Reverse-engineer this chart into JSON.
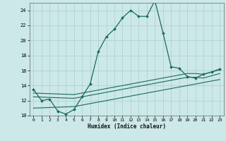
{
  "xlabel": "Humidex (Indice chaleur)",
  "bg_color": "#cce8e8",
  "grid_color": "#aacfcf",
  "line_color": "#1a6b5a",
  "xlim": [
    -0.5,
    23.5
  ],
  "ylim": [
    10,
    25
  ],
  "yticks": [
    10,
    12,
    14,
    16,
    18,
    20,
    22,
    24
  ],
  "xticks": [
    0,
    1,
    2,
    3,
    4,
    5,
    6,
    7,
    8,
    9,
    10,
    11,
    12,
    13,
    14,
    15,
    16,
    17,
    18,
    19,
    20,
    21,
    22,
    23
  ],
  "main_line": {
    "x": [
      0,
      1,
      2,
      3,
      4,
      5,
      6,
      7,
      8,
      9,
      10,
      11,
      12,
      13,
      14,
      15,
      16,
      17,
      18,
      19,
      20,
      21,
      22,
      23
    ],
    "y": [
      13.5,
      12.0,
      12.2,
      10.6,
      10.2,
      10.8,
      12.5,
      14.2,
      18.5,
      20.5,
      21.5,
      23.0,
      24.0,
      23.2,
      23.2,
      25.3,
      21.0,
      16.5,
      16.3,
      15.2,
      15.0,
      15.5,
      15.8,
      16.2
    ]
  },
  "flat_lines": [
    {
      "x": [
        0,
        5,
        6,
        7,
        8,
        9,
        10,
        11,
        12,
        13,
        14,
        15,
        16,
        17,
        18,
        19,
        20,
        21,
        22,
        23
      ],
      "y": [
        13.0,
        12.8,
        13.0,
        13.2,
        13.4,
        13.6,
        13.8,
        14.0,
        14.2,
        14.4,
        14.6,
        14.8,
        15.0,
        15.2,
        15.4,
        15.6,
        15.6,
        15.5,
        15.8,
        16.1
      ]
    },
    {
      "x": [
        0,
        5,
        6,
        7,
        8,
        9,
        10,
        11,
        12,
        13,
        14,
        15,
        16,
        17,
        18,
        19,
        20,
        21,
        22,
        23
      ],
      "y": [
        12.5,
        12.3,
        12.5,
        12.7,
        12.9,
        13.1,
        13.3,
        13.5,
        13.7,
        13.9,
        14.1,
        14.3,
        14.5,
        14.7,
        14.9,
        15.1,
        15.1,
        15.0,
        15.3,
        15.6
      ]
    },
    {
      "x": [
        0,
        5,
        6,
        7,
        8,
        9,
        10,
        11,
        12,
        13,
        14,
        15,
        16,
        17,
        18,
        19,
        20,
        21,
        22,
        23
      ],
      "y": [
        11.0,
        11.2,
        11.4,
        11.6,
        11.8,
        12.0,
        12.2,
        12.4,
        12.6,
        12.8,
        13.0,
        13.2,
        13.4,
        13.6,
        13.8,
        14.0,
        14.2,
        14.4,
        14.6,
        14.8
      ]
    }
  ]
}
